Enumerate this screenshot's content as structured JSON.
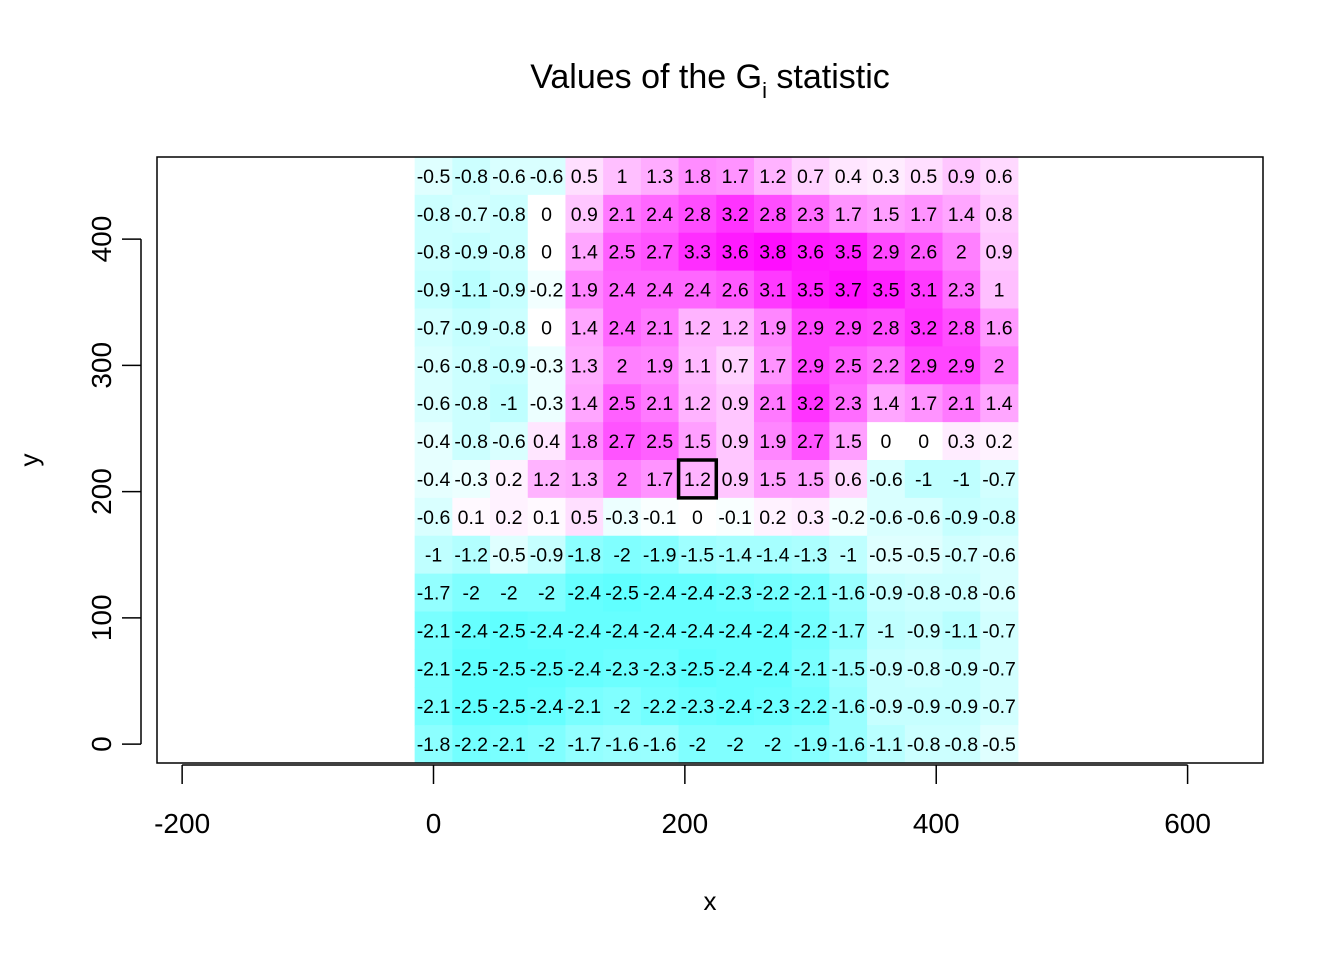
{
  "chart_data": {
    "type": "heatmap",
    "title": "Values of the G",
    "title_subscript": "i",
    "title_suffix": " statistic",
    "xlabel": "x",
    "ylabel": "y",
    "xlim": [
      -220,
      660
    ],
    "ylim": [
      -15,
      465
    ],
    "x_ticks": [
      -200,
      0,
      200,
      400,
      600
    ],
    "y_ticks": [
      0,
      100,
      200,
      300,
      400
    ],
    "x_tick_labels": [
      "-200",
      "0",
      "200",
      "400",
      "600"
    ],
    "y_tick_labels": [
      "0",
      "100",
      "200",
      "300",
      "400"
    ],
    "cell_size": 30,
    "x": [
      0,
      30,
      60,
      90,
      120,
      150,
      180,
      210,
      240,
      270,
      300,
      330,
      360,
      390,
      420,
      450
    ],
    "y": [
      450,
      420,
      390,
      360,
      330,
      300,
      270,
      240,
      210,
      180,
      150,
      120,
      90,
      60,
      30,
      0
    ],
    "values": [
      [
        "-0.5",
        "-0.8",
        "-0.6",
        "-0.6",
        "0.5",
        "1",
        "1.3",
        "1.8",
        "1.7",
        "1.2",
        "0.7",
        "0.4",
        "0.3",
        "0.5",
        "0.9",
        "0.6"
      ],
      [
        "-0.8",
        "-0.7",
        "-0.8",
        "0",
        "0.9",
        "2.1",
        "2.4",
        "2.8",
        "3.2",
        "2.8",
        "2.3",
        "1.7",
        "1.5",
        "1.7",
        "1.4",
        "0.8"
      ],
      [
        "-0.8",
        "-0.9",
        "-0.8",
        "0",
        "1.4",
        "2.5",
        "2.7",
        "3.3",
        "3.6",
        "3.8",
        "3.6",
        "3.5",
        "2.9",
        "2.6",
        "2",
        "0.9"
      ],
      [
        "-0.9",
        "-1.1",
        "-0.9",
        "-0.2",
        "1.9",
        "2.4",
        "2.4",
        "2.4",
        "2.6",
        "3.1",
        "3.5",
        "3.7",
        "3.5",
        "3.1",
        "2.3",
        "1"
      ],
      [
        "-0.7",
        "-0.9",
        "-0.8",
        "0",
        "1.4",
        "2.4",
        "2.1",
        "1.2",
        "1.2",
        "1.9",
        "2.9",
        "2.9",
        "2.8",
        "3.2",
        "2.8",
        "1.6"
      ],
      [
        "-0.6",
        "-0.8",
        "-0.9",
        "-0.3",
        "1.3",
        "2",
        "1.9",
        "1.1",
        "0.7",
        "1.7",
        "2.9",
        "2.5",
        "2.2",
        "2.9",
        "2.9",
        "2"
      ],
      [
        "-0.6",
        "-0.8",
        "-1",
        "-0.3",
        "1.4",
        "2.5",
        "2.1",
        "1.2",
        "0.9",
        "2.1",
        "3.2",
        "2.3",
        "1.4",
        "1.7",
        "2.1",
        "1.4"
      ],
      [
        "-0.4",
        "-0.8",
        "-0.6",
        "0.4",
        "1.8",
        "2.7",
        "2.5",
        "1.5",
        "0.9",
        "1.9",
        "2.7",
        "1.5",
        "0",
        "0",
        "0.3",
        "0.2"
      ],
      [
        "-0.4",
        "-0.3",
        "0.2",
        "1.2",
        "1.3",
        "2",
        "1.7",
        "1.2",
        "0.9",
        "1.5",
        "1.5",
        "0.6",
        "-0.6",
        "-1",
        "-1",
        "-0.7"
      ],
      [
        "-0.6",
        "0.1",
        "0.2",
        "0.1",
        "0.5",
        "-0.3",
        "-0.1",
        "0",
        "-0.1",
        "0.2",
        "0.3",
        "-0.2",
        "-0.6",
        "-0.6",
        "-0.9",
        "-0.8"
      ],
      [
        "-1",
        "-1.2",
        "-0.5",
        "-0.9",
        "-1.8",
        "-2",
        "-1.9",
        "-1.5",
        "-1.4",
        "-1.4",
        "-1.3",
        "-1",
        "-0.5",
        "-0.5",
        "-0.7",
        "-0.6"
      ],
      [
        "-1.7",
        "-2",
        "-2",
        "-2",
        "-2.4",
        "-2.5",
        "-2.4",
        "-2.4",
        "-2.3",
        "-2.2",
        "-2.1",
        "-1.6",
        "-0.9",
        "-0.8",
        "-0.8",
        "-0.6"
      ],
      [
        "-2.1",
        "-2.4",
        "-2.5",
        "-2.4",
        "-2.4",
        "-2.4",
        "-2.4",
        "-2.4",
        "-2.4",
        "-2.4",
        "-2.2",
        "-1.7",
        "-1",
        "-0.9",
        "-1.1",
        "-0.7"
      ],
      [
        "-2.1",
        "-2.5",
        "-2.5",
        "-2.5",
        "-2.4",
        "-2.3",
        "-2.3",
        "-2.5",
        "-2.4",
        "-2.4",
        "-2.1",
        "-1.5",
        "-0.9",
        "-0.8",
        "-0.9",
        "-0.7"
      ],
      [
        "-2.1",
        "-2.5",
        "-2.5",
        "-2.4",
        "-2.1",
        "-2",
        "-2.2",
        "-2.3",
        "-2.4",
        "-2.3",
        "-2.2",
        "-1.6",
        "-0.9",
        "-0.9",
        "-0.9",
        "-0.7"
      ],
      [
        "-1.8",
        "-2.2",
        "-2.1",
        "-2",
        "-1.7",
        "-1.6",
        "-1.6",
        "-2",
        "-2",
        "-2",
        "-1.9",
        "-1.6",
        "-1.1",
        "-0.8",
        "-0.8",
        "-0.5"
      ]
    ],
    "highlighted_cell": {
      "x": 210,
      "y": 210,
      "value": "1.2"
    },
    "colors": {
      "high": "#ff00ff",
      "low": "#00ffff",
      "mid": "#ffffff"
    },
    "grid": false
  }
}
